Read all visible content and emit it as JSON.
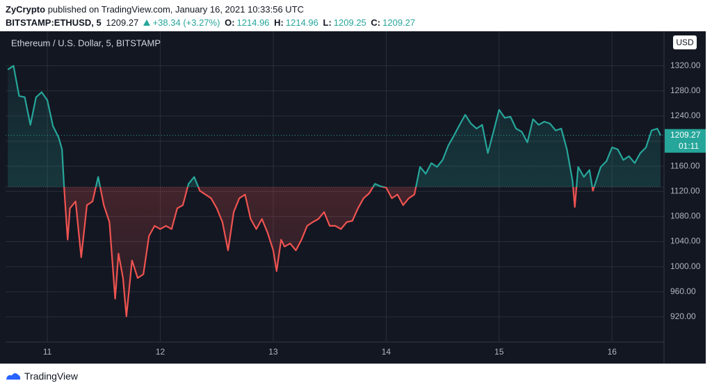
{
  "header": {
    "author": "ZyCrypto",
    "published": "published on TradingView.com, January 16, 2021 10:33:56 UTC",
    "symbol": "BITSTAMP:ETHUSD, 5",
    "last": "1209.27",
    "change": "+38.34 (+3.27%)",
    "o_label": "O:",
    "o": "1214.96",
    "h_label": "H:",
    "h": "1214.96",
    "l_label": "L:",
    "l": "1209.25",
    "c_label": "C:",
    "c": "1209.27"
  },
  "chart_data": {
    "type": "baseline",
    "title": "Ethereum / U.S. Dollar, 5, BITSTAMP",
    "currency": "USD",
    "price_tag": "1209.27",
    "countdown": "01:11",
    "baseline": 1127,
    "up_color": "#26a69a",
    "down_color": "#ef5350",
    "grid": true,
    "x": [
      10.65,
      10.7,
      10.75,
      10.8,
      10.85,
      10.9,
      10.95,
      11.0,
      11.05,
      11.1,
      11.13,
      11.15,
      11.18,
      11.2,
      11.25,
      11.3,
      11.35,
      11.4,
      11.45,
      11.5,
      11.55,
      11.6,
      11.63,
      11.67,
      11.7,
      11.75,
      11.8,
      11.85,
      11.9,
      11.95,
      12.0,
      12.05,
      12.1,
      12.15,
      12.2,
      12.25,
      12.3,
      12.35,
      12.4,
      12.45,
      12.5,
      12.55,
      12.6,
      12.65,
      12.7,
      12.75,
      12.8,
      12.85,
      12.9,
      12.95,
      13.0,
      13.03,
      13.07,
      13.1,
      13.15,
      13.2,
      13.25,
      13.3,
      13.35,
      13.4,
      13.45,
      13.5,
      13.55,
      13.6,
      13.65,
      13.7,
      13.75,
      13.8,
      13.85,
      13.9,
      13.95,
      14.0,
      14.05,
      14.1,
      14.15,
      14.2,
      14.25,
      14.3,
      14.35,
      14.4,
      14.45,
      14.5,
      14.55,
      14.6,
      14.65,
      14.7,
      14.75,
      14.8,
      14.85,
      14.9,
      14.95,
      15.0,
      15.05,
      15.1,
      15.15,
      15.2,
      15.25,
      15.3,
      15.35,
      15.4,
      15.45,
      15.5,
      15.55,
      15.6,
      15.65,
      15.67,
      15.7,
      15.75,
      15.8,
      15.83,
      15.87,
      15.9,
      15.95,
      16.0,
      16.05,
      16.1,
      16.15,
      16.2,
      16.25,
      16.3,
      16.35,
      16.4,
      16.43
    ],
    "values": [
      1314,
      1320,
      1272,
      1270,
      1226,
      1270,
      1278,
      1265,
      1224,
      1206,
      1187,
      1121,
      1043,
      1093,
      1104,
      1015,
      1098,
      1104,
      1143,
      1098,
      1071,
      949,
      1021,
      982,
      921,
      1010,
      982,
      988,
      1049,
      1065,
      1060,
      1065,
      1060,
      1093,
      1098,
      1132,
      1143,
      1121,
      1115,
      1109,
      1093,
      1071,
      1026,
      1087,
      1109,
      1115,
      1076,
      1060,
      1076,
      1054,
      1026,
      993,
      1043,
      1032,
      1037,
      1026,
      1043,
      1065,
      1071,
      1076,
      1087,
      1065,
      1065,
      1060,
      1071,
      1073,
      1093,
      1109,
      1117,
      1132,
      1128,
      1126,
      1109,
      1115,
      1098,
      1109,
      1115,
      1159,
      1148,
      1165,
      1159,
      1170,
      1193,
      1209,
      1226,
      1242,
      1228,
      1220,
      1226,
      1181,
      1215,
      1250,
      1237,
      1239,
      1220,
      1215,
      1198,
      1235,
      1226,
      1231,
      1228,
      1217,
      1220,
      1187,
      1137,
      1095,
      1159,
      1143,
      1154,
      1121,
      1143,
      1159,
      1168,
      1190,
      1187,
      1170,
      1176,
      1165,
      1181,
      1190,
      1217,
      1220,
      1209.27
    ],
    "xlim": [
      10.63,
      16.46
    ],
    "xticks": [
      11,
      12,
      13,
      14,
      15,
      16
    ],
    "ylim": [
      880,
      1375
    ],
    "yticks": [
      {
        "value": 920,
        "label": "920.00"
      },
      {
        "value": 960,
        "label": "960.00"
      },
      {
        "value": 1000,
        "label": "1000.00"
      },
      {
        "value": 1040,
        "label": "1040.00"
      },
      {
        "value": 1080,
        "label": "1080.00"
      },
      {
        "value": 1120,
        "label": "1120.00"
      },
      {
        "value": 1160,
        "label": "1160.00"
      },
      {
        "value": 1200,
        "label": "1200.00"
      },
      {
        "value": 1240,
        "label": "1240.00"
      },
      {
        "value": 1280,
        "label": "1280.00"
      },
      {
        "value": 1320,
        "label": "1320.00"
      }
    ]
  },
  "footer": {
    "brand": "TradingView"
  }
}
